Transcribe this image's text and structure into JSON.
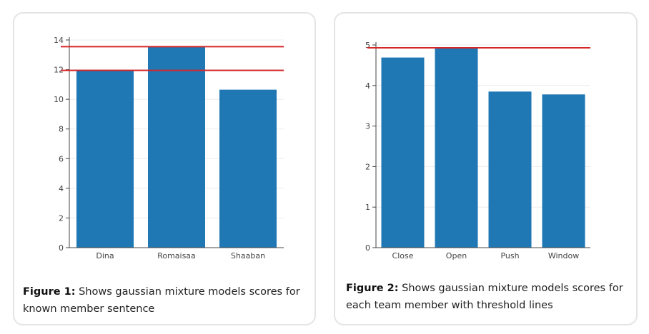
{
  "figures": [
    {
      "caption_label": "Figure 1:",
      "caption_text": "Shows gaussian mixture models scores for known member sentence"
    },
    {
      "caption_label": "Figure 2:",
      "caption_text": "Shows gaussian mixture models scores for each team member with threshold lines"
    }
  ],
  "chart_data": [
    {
      "type": "bar",
      "categories": [
        "Dina",
        "Romaisaa",
        "Shaaban"
      ],
      "values": [
        11.95,
        13.55,
        10.65
      ],
      "ylim": [
        0,
        14
      ],
      "yticks": [
        0,
        2,
        4,
        6,
        8,
        10,
        12,
        14
      ],
      "threshold_lines": [
        13.55,
        11.95
      ],
      "bar_color": "#1f77b4",
      "threshold_color": "#d62728",
      "grid": true,
      "title": "",
      "xlabel": "",
      "ylabel": ""
    },
    {
      "type": "bar",
      "categories": [
        "Close",
        "Open",
        "Push",
        "Window"
      ],
      "values": [
        4.69,
        4.93,
        3.85,
        3.78
      ],
      "ylim": [
        0,
        5
      ],
      "yticks": [
        0,
        1,
        2,
        3,
        4,
        5
      ],
      "threshold_lines": [
        4.93
      ],
      "bar_color": "#1f77b4",
      "threshold_color": "#d62728",
      "grid": true,
      "title": "",
      "xlabel": "",
      "ylabel": ""
    }
  ]
}
